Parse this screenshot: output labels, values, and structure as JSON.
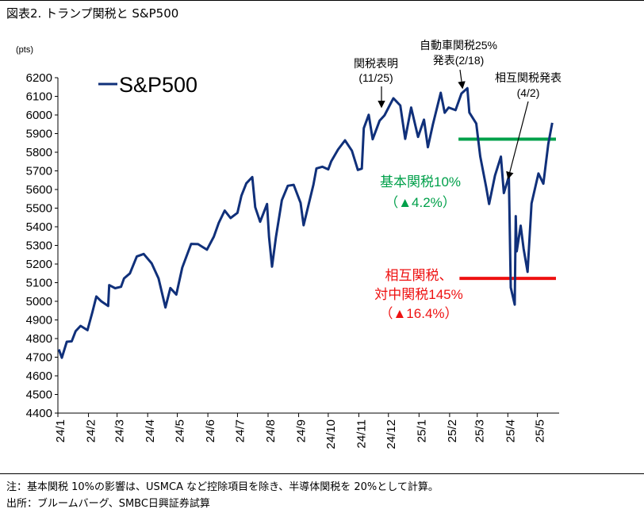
{
  "title": "図表2. トランプ関税と S&P500",
  "chart_data": {
    "type": "line",
    "unit": "(pts)",
    "ylim": [
      4400,
      6200
    ],
    "y_ticks": [
      4400,
      4500,
      4600,
      4700,
      4800,
      4900,
      5000,
      5100,
      5200,
      5300,
      5400,
      5500,
      5600,
      5700,
      5800,
      5900,
      6000,
      6100,
      6200
    ],
    "x_ticks": [
      "24/1",
      "24/2",
      "24/3",
      "24/4",
      "24/5",
      "24/6",
      "24/7",
      "24/8",
      "24/9",
      "24/10",
      "24/11",
      "24/12",
      "25/1",
      "25/2",
      "25/3",
      "25/4",
      "25/5"
    ],
    "series": [
      {
        "name": "S&P500",
        "color": "#10307a",
        "x": [
          "2024-01-02",
          "2024-01-05",
          "2024-01-10",
          "2024-01-15",
          "2024-01-19",
          "2024-01-24",
          "2024-01-31",
          "2024-02-05",
          "2024-02-09",
          "2024-02-14",
          "2024-02-21",
          "2024-02-22",
          "2024-02-28",
          "2024-03-05",
          "2024-03-08",
          "2024-03-14",
          "2024-03-21",
          "2024-03-28",
          "2024-04-05",
          "2024-04-12",
          "2024-04-19",
          "2024-04-24",
          "2024-04-30",
          "2024-05-06",
          "2024-05-15",
          "2024-05-22",
          "2024-05-31",
          "2024-06-07",
          "2024-06-12",
          "2024-06-18",
          "2024-06-24",
          "2024-07-01",
          "2024-07-05",
          "2024-07-10",
          "2024-07-16",
          "2024-07-19",
          "2024-07-24",
          "2024-07-31",
          "2024-08-02",
          "2024-08-05",
          "2024-08-09",
          "2024-08-15",
          "2024-08-21",
          "2024-08-27",
          "2024-09-03",
          "2024-09-06",
          "2024-09-10",
          "2024-09-16",
          "2024-09-19",
          "2024-09-25",
          "2024-10-01",
          "2024-10-04",
          "2024-10-11",
          "2024-10-18",
          "2024-10-25",
          "2024-10-31",
          "2024-11-04",
          "2024-11-06",
          "2024-11-11",
          "2024-11-15",
          "2024-11-22",
          "2024-11-27",
          "2024-12-06",
          "2024-12-13",
          "2024-12-18",
          "2024-12-24",
          "2024-12-31",
          "2025-01-06",
          "2025-01-10",
          "2025-01-15",
          "2025-01-23",
          "2025-01-27",
          "2025-01-31",
          "2025-02-07",
          "2025-02-13",
          "2025-02-19",
          "2025-02-21",
          "2025-02-28",
          "2025-03-04",
          "2025-03-10",
          "2025-03-13",
          "2025-03-19",
          "2025-03-25",
          "2025-03-28",
          "2025-04-02",
          "2025-04-04",
          "2025-04-08",
          "2025-04-09",
          "2025-04-10",
          "2025-04-14",
          "2025-04-17",
          "2025-04-21",
          "2025-04-25",
          "2025-05-02",
          "2025-05-07",
          "2025-05-12",
          "2025-05-16"
        ],
        "y": [
          4742,
          4697,
          4783,
          4785,
          4840,
          4868,
          4845,
          4942,
          5026,
          5000,
          4975,
          5087,
          5070,
          5078,
          5123,
          5150,
          5241,
          5254,
          5204,
          5123,
          4967,
          5071,
          5036,
          5181,
          5308,
          5307,
          5277,
          5347,
          5421,
          5487,
          5447,
          5475,
          5567,
          5633,
          5667,
          5505,
          5427,
          5522,
          5346,
          5186,
          5344,
          5543,
          5620,
          5625,
          5528,
          5408,
          5496,
          5626,
          5713,
          5722,
          5708,
          5751,
          5815,
          5864,
          5808,
          5705,
          5712,
          5929,
          6001,
          5870,
          5969,
          5998,
          6090,
          6051,
          5872,
          6040,
          5882,
          5975,
          5827,
          5949,
          6119,
          6012,
          6040,
          6026,
          6115,
          6144,
          6013,
          5954,
          5778,
          5615,
          5522,
          5675,
          5776,
          5581,
          5670,
          5074,
          4982,
          5457,
          5268,
          5406,
          5282,
          5158,
          5525,
          5686,
          5631,
          5844,
          5958
        ]
      }
    ],
    "legend": {
      "label": "S&P500",
      "position": "top-left"
    },
    "annotations": {
      "event1_line1": "関税表明",
      "event1_line2": "(11/25)",
      "event1_date": "2024-11-25",
      "event2_line1": "自動車関税25%",
      "event2_line2": "発表(2/18)",
      "event2_date": "2025-02-18",
      "event3_line1": "相互関税発表",
      "event3_line2": "(4/2)",
      "event3_date": "2025-04-02",
      "level1_value": 5870,
      "level1_color": "#00a04a",
      "level1_line1": "基本関税10%",
      "level1_line2": "（▲4.2%）",
      "level2_value": 5123,
      "level2_color": "#ee1111",
      "level2_line1": "相互関税、",
      "level2_line2": "対中関税145%",
      "level2_line3": "（▲16.4%）"
    }
  },
  "notes": {
    "note1": "注：基本関税 10%の影響は、USMCA など控除項目を除き、半導体関税を 20%として計算。",
    "source": "出所：ブルームバーグ、SMBC日興証券試算"
  }
}
